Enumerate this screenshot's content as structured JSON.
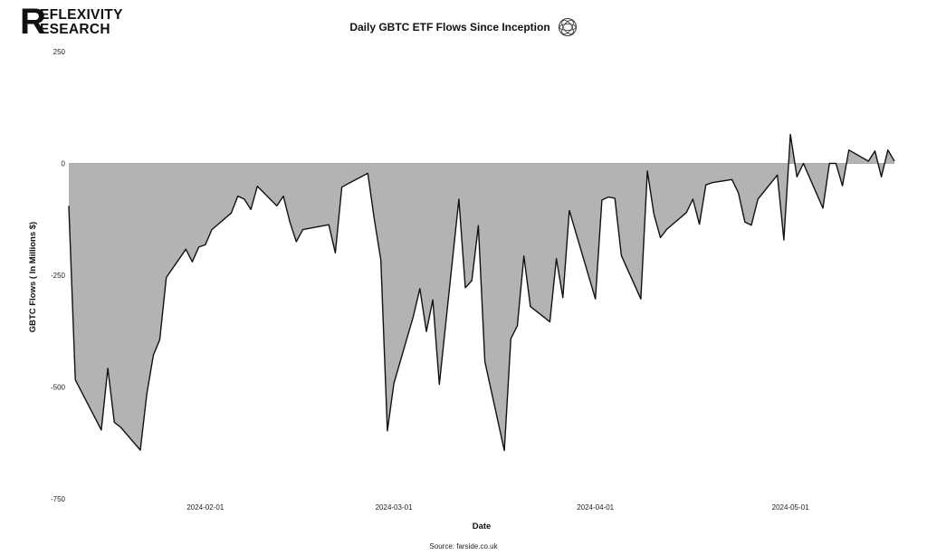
{
  "brand": {
    "letter": "R",
    "line1": "EFLEXIVITY",
    "line2": "ESEARCH"
  },
  "header": {
    "title": "Daily GBTC ETF Flows Since Inception",
    "icon": "globe-knot-icon"
  },
  "source_text": "Source: farside.co.uk",
  "chart_data": {
    "type": "area",
    "title": "Daily GBTC ETF Flows Since Inception",
    "xlabel": "Date",
    "ylabel": "GBTC Flows ( In Millions $)",
    "ylim": [
      -750,
      250
    ],
    "yticks": [
      250,
      0,
      -250,
      -500,
      -750
    ],
    "xticks": [
      "2024-02-01",
      "2024-03-01",
      "2024-04-01",
      "2024-05-01"
    ],
    "xlim": [
      "2024-01-11",
      "2024-05-17"
    ],
    "grid": false,
    "fill_color": "#b3b3b3",
    "line_color": "#111111",
    "series": [
      {
        "x": [
          "2024-01-11",
          "2024-01-12",
          "2024-01-16",
          "2024-01-17",
          "2024-01-18",
          "2024-01-19",
          "2024-01-22",
          "2024-01-23",
          "2024-01-24",
          "2024-01-25",
          "2024-01-26",
          "2024-01-29",
          "2024-01-30",
          "2024-01-31",
          "2024-02-01",
          "2024-02-02",
          "2024-02-05",
          "2024-02-06",
          "2024-02-07",
          "2024-02-08",
          "2024-02-09",
          "2024-02-12",
          "2024-02-13",
          "2024-02-14",
          "2024-02-15",
          "2024-02-16",
          "2024-02-20",
          "2024-02-21",
          "2024-02-22",
          "2024-02-23",
          "2024-02-26",
          "2024-02-27",
          "2024-02-28",
          "2024-02-29",
          "2024-03-01",
          "2024-03-04",
          "2024-03-05",
          "2024-03-06",
          "2024-03-07",
          "2024-03-08",
          "2024-03-11",
          "2024-03-12",
          "2024-03-13",
          "2024-03-14",
          "2024-03-15",
          "2024-03-18",
          "2024-03-19",
          "2024-03-20",
          "2024-03-21",
          "2024-03-22",
          "2024-03-25",
          "2024-03-26",
          "2024-03-27",
          "2024-03-28",
          "2024-04-01",
          "2024-04-02",
          "2024-04-03",
          "2024-04-04",
          "2024-04-05",
          "2024-04-08",
          "2024-04-09",
          "2024-04-10",
          "2024-04-11",
          "2024-04-12",
          "2024-04-15",
          "2024-04-16",
          "2024-04-17",
          "2024-04-18",
          "2024-04-19",
          "2024-04-22",
          "2024-04-23",
          "2024-04-24",
          "2024-04-25",
          "2024-04-26",
          "2024-04-29",
          "2024-04-30",
          "2024-05-01",
          "2024-05-02",
          "2024-05-03",
          "2024-05-06",
          "2024-05-07",
          "2024-05-08",
          "2024-05-09",
          "2024-05-10",
          "2024-05-13",
          "2024-05-14",
          "2024-05-15",
          "2024-05-16",
          "2024-05-17"
        ],
        "values": [
          -95,
          -484,
          -596,
          -458,
          -579,
          -590,
          -641,
          -515,
          -429,
          -394,
          -255,
          -192,
          -220,
          -187,
          -182,
          -148,
          -111,
          -73,
          -80,
          -103,
          -51,
          -95,
          -73,
          -131,
          -175,
          -148,
          -137,
          -200,
          -53,
          -45,
          -22,
          -125,
          -216,
          -598,
          -492,
          -342,
          -280,
          -376,
          -305,
          -494,
          -80,
          -278,
          -262,
          -139,
          -443,
          -642,
          -392,
          -363,
          -207,
          -320,
          -354,
          -213,
          -300,
          -105,
          -303,
          -82,
          -75,
          -78,
          -206,
          -303,
          -17,
          -113,
          -166,
          -147,
          -110,
          -80,
          -136,
          -48,
          -43,
          -36,
          -66,
          -131,
          -138,
          -80,
          -26,
          -171,
          65,
          -30,
          0,
          -100,
          0,
          0,
          -50,
          30,
          5,
          28,
          -30,
          30,
          5
        ]
      }
    ]
  }
}
